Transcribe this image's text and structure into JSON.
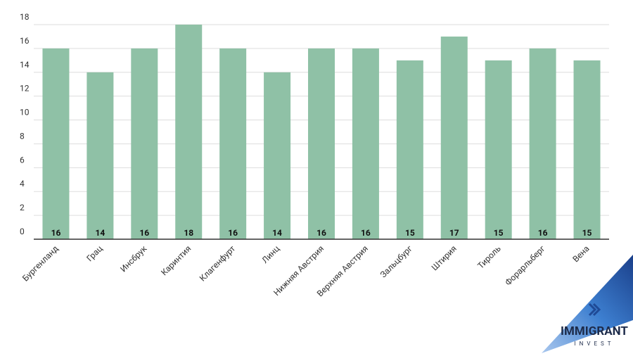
{
  "chart_data": {
    "type": "bar",
    "categories": [
      "Бургенланд",
      "Грац",
      "Инсбрук",
      "Каринтия",
      "Клагенфурт",
      "Линц",
      "Нижняя Австрия",
      "Верхняя Австрия",
      "Зальцбург",
      "Штирия",
      "Тироль",
      "Форарльберг",
      "Вена"
    ],
    "values": [
      16,
      14,
      16,
      18,
      16,
      14,
      16,
      16,
      15,
      17,
      15,
      16,
      15
    ],
    "color": "#8fc1a6",
    "ylim": [
      0,
      18
    ],
    "yticks": [
      0,
      2,
      4,
      6,
      8,
      10,
      12,
      14,
      16,
      18
    ],
    "grid": true
  },
  "logo": {
    "name": "IMMIGRANT",
    "sub": "INVEST"
  }
}
